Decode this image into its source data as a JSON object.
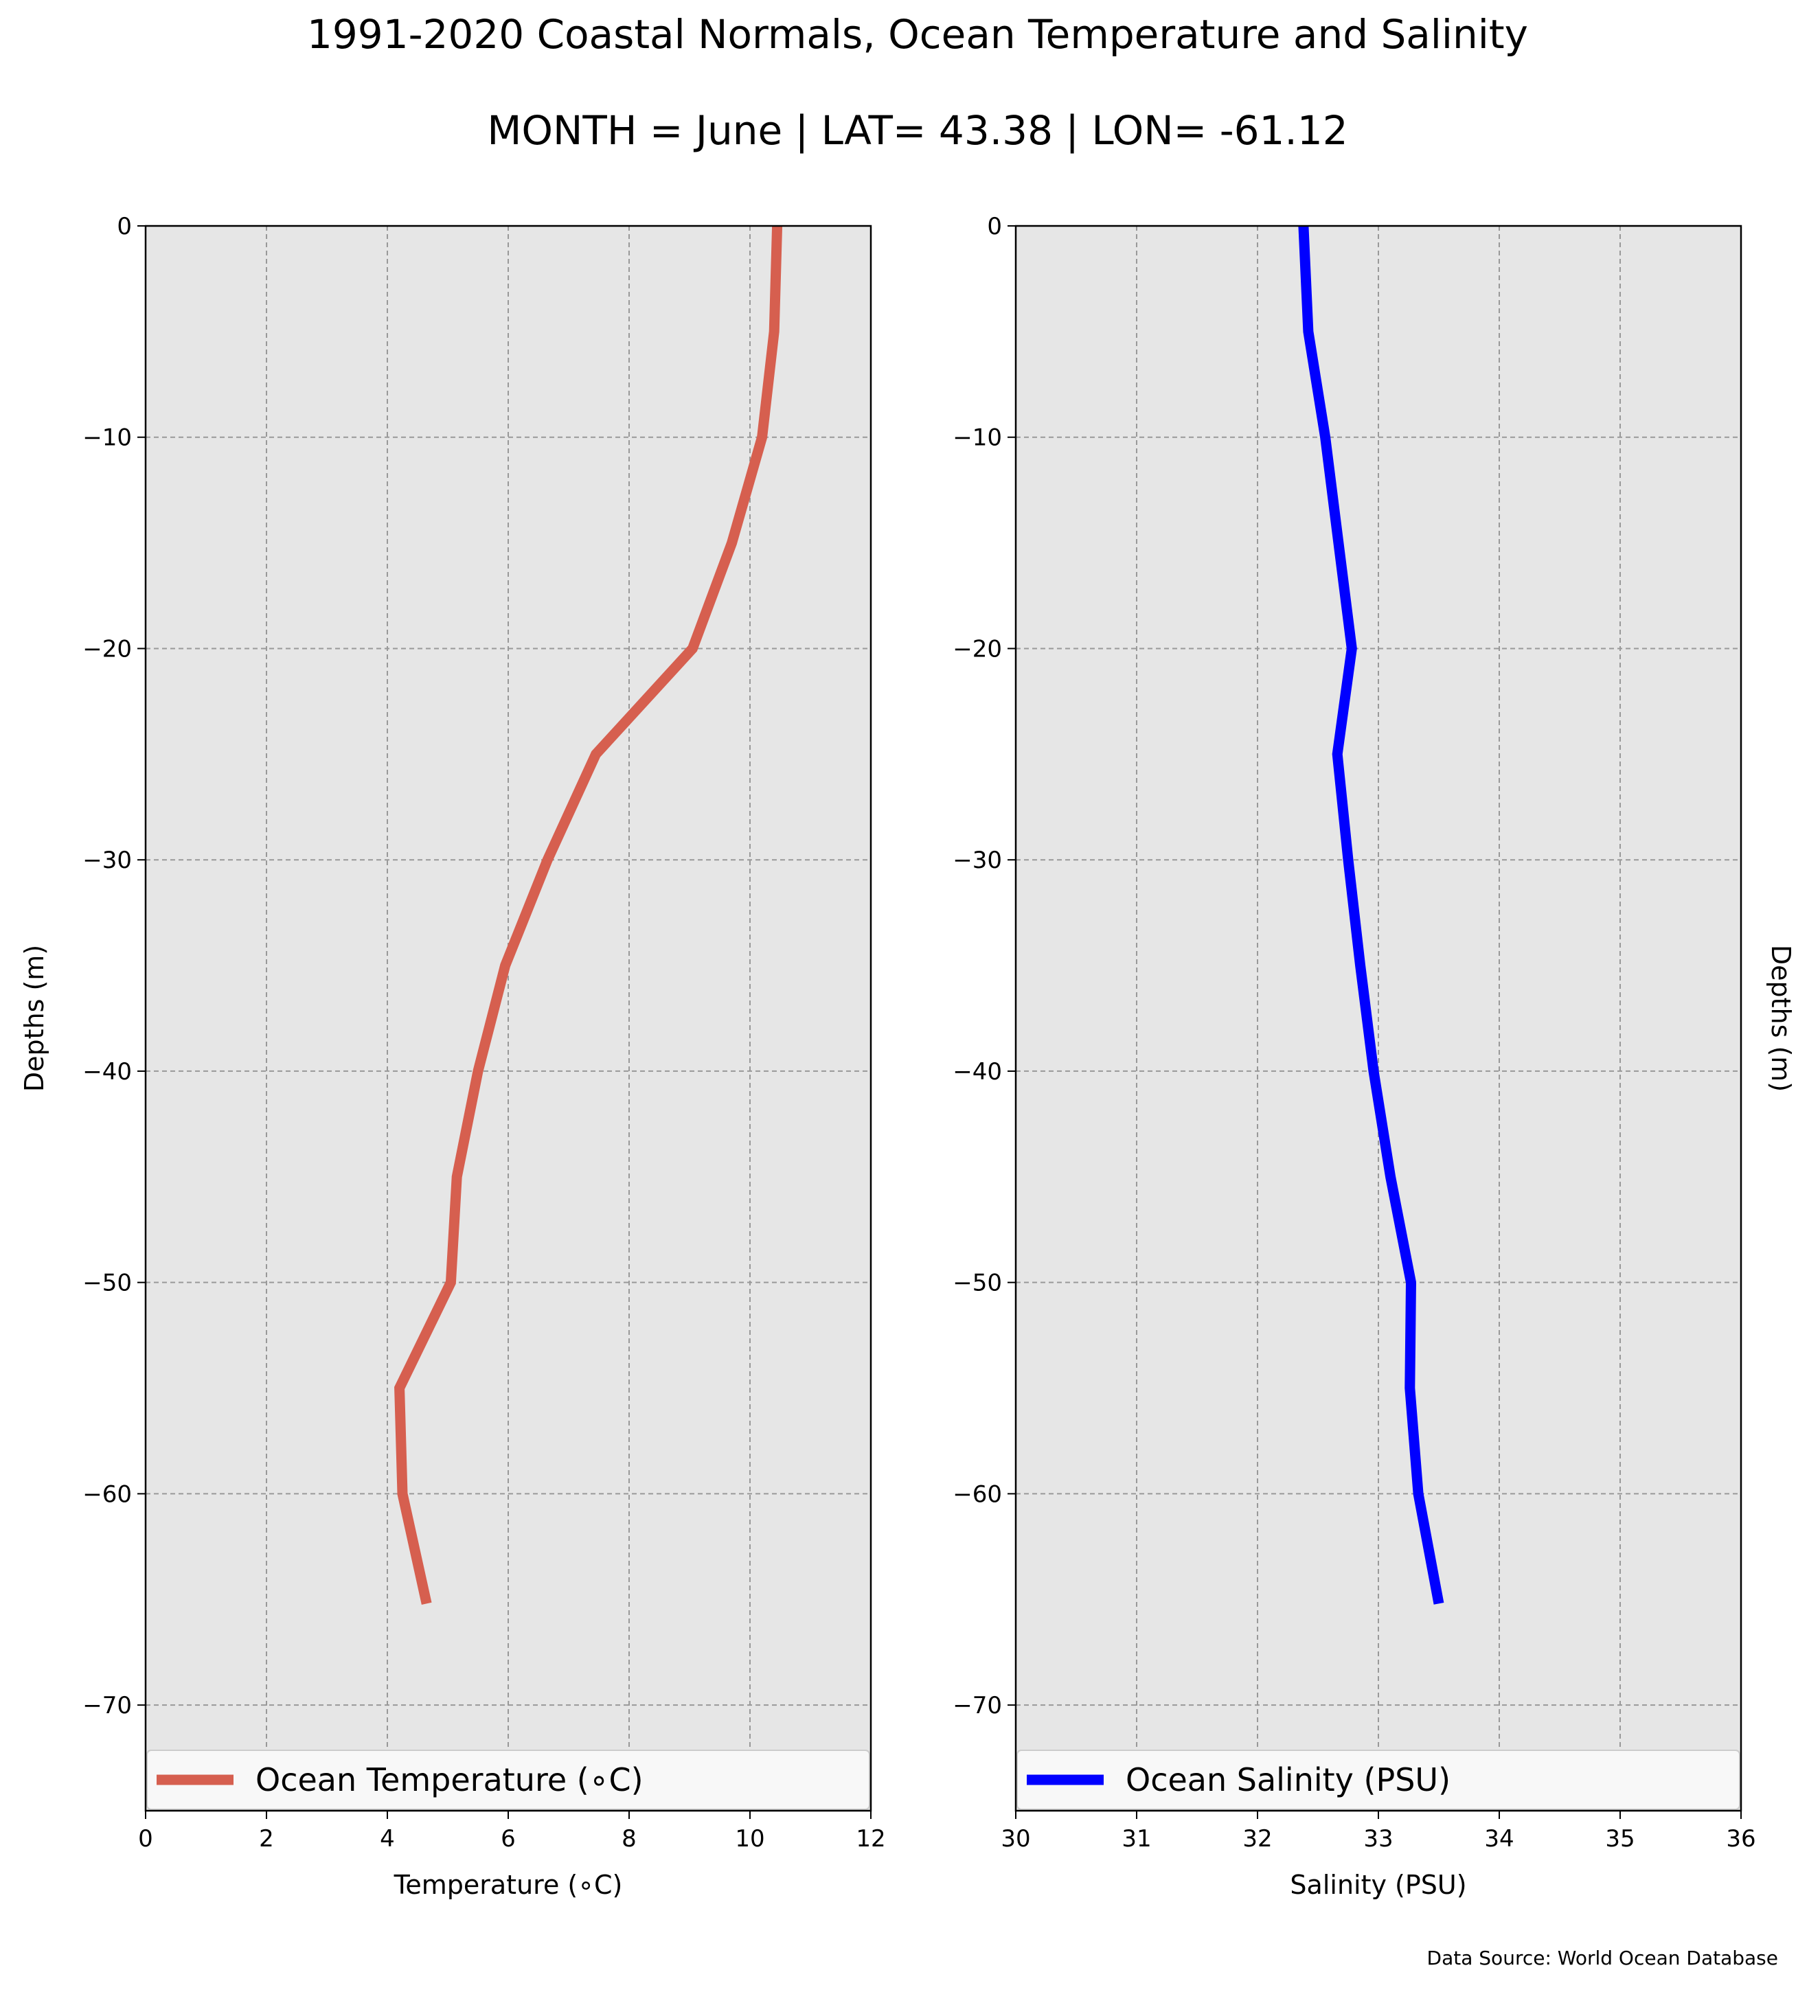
{
  "figure": {
    "title": "1991-2020 Coastal Normals, Ocean Temperature and Salinity",
    "subtitle": "MONTH = June | LAT= 43.38 | LON= -61.12",
    "source_note": "Data Source: World Ocean Database",
    "background": "#ffffff",
    "axes_background": "#e6e6e6",
    "grid_color": "#999999"
  },
  "chart_data": [
    {
      "type": "line",
      "title": "",
      "xlabel": "Temperature (∘C)",
      "ylabel": "Depths (m)",
      "xlim": [
        0,
        12
      ],
      "ylim": [
        -75,
        0
      ],
      "xticks": [
        0,
        2,
        4,
        6,
        8,
        10,
        12
      ],
      "xtick_labels": [
        "0",
        "2",
        "4",
        "6",
        "8",
        "10",
        "12"
      ],
      "yticks": [
        0,
        -10,
        -20,
        -30,
        -40,
        -50,
        -60,
        -70
      ],
      "ytick_labels": [
        "0",
        "−10",
        "−20",
        "−30",
        "−40",
        "−50",
        "−60",
        "−70"
      ],
      "ylabel_side": "left",
      "grid": true,
      "legend_position": "bottom",
      "series": [
        {
          "name": "Ocean Temperature (∘C)",
          "color": "#d65f4f",
          "x": [
            10.45,
            10.4,
            10.2,
            9.7,
            9.05,
            7.45,
            6.65,
            5.95,
            5.5,
            5.15,
            5.05,
            4.2,
            4.25,
            4.65
          ],
          "y": [
            0,
            -5,
            -10,
            -15,
            -20,
            -25,
            -30,
            -35,
            -40,
            -45,
            -50,
            -55,
            -60,
            -65.2
          ]
        }
      ]
    },
    {
      "type": "line",
      "title": "",
      "xlabel": "Salinity (PSU)",
      "ylabel": "Depths (m)",
      "xlim": [
        30,
        36
      ],
      "ylim": [
        -75,
        0
      ],
      "xticks": [
        30,
        31,
        32,
        33,
        34,
        35,
        36
      ],
      "xtick_labels": [
        "30",
        "31",
        "32",
        "33",
        "34",
        "35",
        "36"
      ],
      "yticks": [
        0,
        -10,
        -20,
        -30,
        -40,
        -50,
        -60,
        -70
      ],
      "ytick_labels": [
        "0",
        "−10",
        "−20",
        "−30",
        "−40",
        "−50",
        "−60",
        "−70"
      ],
      "ylabel_side": "right",
      "grid": true,
      "legend_position": "bottom",
      "series": [
        {
          "name": "Ocean Salinity (PSU)",
          "color": "#0000ff",
          "x": [
            32.38,
            32.42,
            32.56,
            32.67,
            32.78,
            32.66,
            32.75,
            32.85,
            32.96,
            33.1,
            33.27,
            33.26,
            33.33,
            33.5
          ],
          "y": [
            0,
            -5,
            -10,
            -15,
            -20,
            -25,
            -30,
            -35,
            -40,
            -45,
            -50,
            -55,
            -60,
            -65.2
          ]
        }
      ]
    }
  ]
}
